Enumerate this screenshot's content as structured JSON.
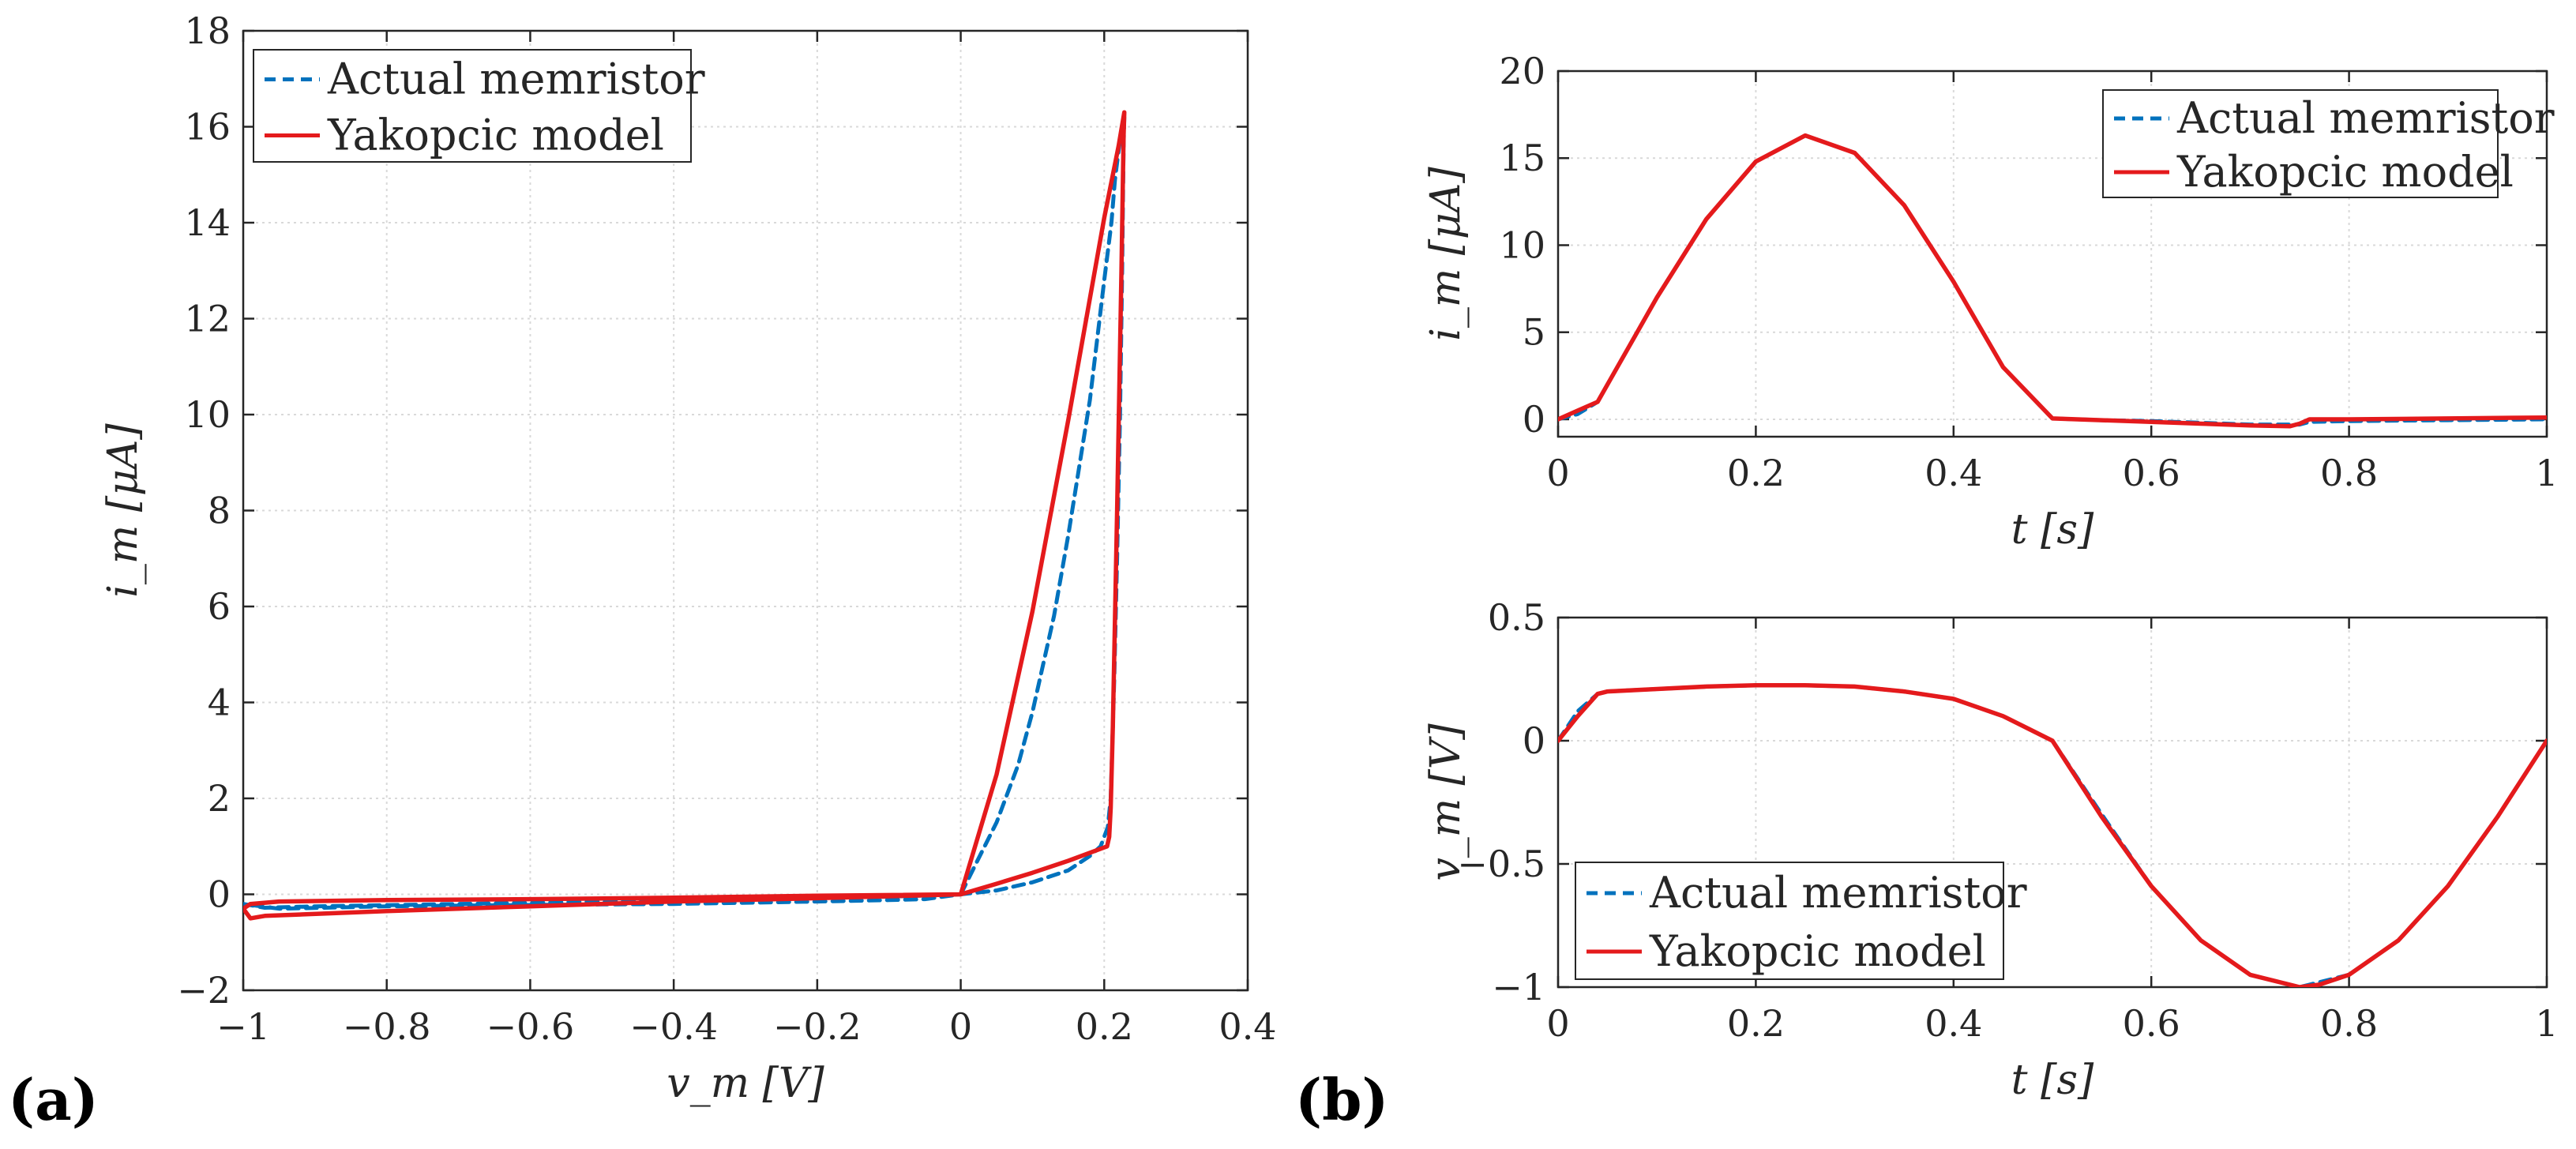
{
  "colors": {
    "actual": "#0072BD",
    "model": "#E41A1C",
    "axis": "#262626",
    "grid": "#d9d9d9"
  },
  "legend_labels": {
    "actual": "Actual memristor",
    "model": "Yakopcic model"
  },
  "chart_data": [
    {
      "panel_label": "(a)",
      "type": "line",
      "xlabel": "v_m [V]",
      "ylabel": "i_m [μA]",
      "xlim": [
        -1,
        0.4
      ],
      "ylim": [
        -2,
        18
      ],
      "xticks": [
        -1,
        -0.8,
        -0.6,
        -0.4,
        -0.2,
        0,
        0.2,
        0.4
      ],
      "yticks": [
        -2,
        0,
        2,
        4,
        6,
        8,
        10,
        12,
        14,
        16,
        18
      ],
      "xtick_labels": [
        "−1",
        "−0.8",
        "−0.6",
        "−0.4",
        "−0.2",
        "0",
        "0.2",
        "0.4"
      ],
      "ytick_labels": [
        "−2",
        "0",
        "2",
        "4",
        "6",
        "8",
        "10",
        "12",
        "14",
        "16",
        "18"
      ],
      "grid": true,
      "legend": "top-left",
      "series": [
        {
          "name": "Actual memristor",
          "style": "dashed",
          "x": [
            0,
            0.02,
            0.05,
            0.08,
            0.1,
            0.13,
            0.15,
            0.18,
            0.2,
            0.21,
            0.215,
            0.22,
            0.225,
            0.228,
            0.227,
            0.225,
            0.222,
            0.218,
            0.214,
            0.211,
            0.209,
            0.205,
            0.195,
            0.18,
            0.15,
            0.1,
            0.05,
            0,
            -0.05,
            -0.1,
            -0.2,
            -0.4,
            -0.6,
            -0.8,
            -0.95,
            -1,
            -0.97,
            -0.9,
            -0.7,
            -0.5,
            -0.3,
            -0.1,
            0
          ],
          "y": [
            0,
            0.6,
            1.5,
            2.7,
            3.8,
            5.8,
            7.5,
            10.3,
            12.8,
            14,
            14.9,
            15.5,
            16.0,
            16.2,
            15.6,
            13,
            10,
            7,
            4.5,
            3,
            2,
            1.4,
            1.0,
            0.8,
            0.5,
            0.25,
            0.08,
            0,
            -0.1,
            -0.12,
            -0.15,
            -0.2,
            -0.22,
            -0.25,
            -0.3,
            -0.2,
            -0.28,
            -0.25,
            -0.2,
            -0.15,
            -0.1,
            -0.05,
            0
          ]
        },
        {
          "name": "Yakopcic model",
          "style": "solid",
          "x": [
            0,
            0.05,
            0.1,
            0.15,
            0.2,
            0.22,
            0.228,
            0.227,
            0.224,
            0.218,
            0.212,
            0.209,
            0.207,
            0.204,
            0.15,
            0.1,
            0.05,
            0,
            -0.2,
            -0.4,
            -0.6,
            -0.8,
            -0.97,
            -0.99,
            -1,
            -0.99,
            -0.95,
            -0.8,
            -0.6,
            -0.4,
            -0.2,
            0
          ],
          "y": [
            0,
            2.5,
            5.9,
            9.9,
            14.1,
            15.6,
            16.3,
            15.8,
            13,
            8,
            3.5,
            1.8,
            1.2,
            1.0,
            0.7,
            0.45,
            0.22,
            0,
            -0.08,
            -0.15,
            -0.25,
            -0.35,
            -0.45,
            -0.5,
            -0.3,
            -0.2,
            -0.15,
            -0.12,
            -0.1,
            -0.07,
            -0.03,
            0
          ]
        }
      ]
    },
    {
      "panel_label": "(b)",
      "type": "line",
      "xlabel": "t [s]",
      "ylabel": "i_m [μA]",
      "xlim": [
        0,
        1
      ],
      "ylim": [
        -1,
        20
      ],
      "xticks": [
        0,
        0.2,
        0.4,
        0.6,
        0.8,
        1
      ],
      "yticks": [
        0,
        5,
        10,
        15,
        20
      ],
      "xtick_labels": [
        "0",
        "0.2",
        "0.4",
        "0.6",
        "0.8",
        "1"
      ],
      "ytick_labels": [
        "0",
        "5",
        "10",
        "15",
        "20"
      ],
      "grid": true,
      "legend": "top-right",
      "series": [
        {
          "name": "Actual memristor",
          "style": "dashed",
          "x": [
            0,
            0.02,
            0.04,
            0.06,
            0.08,
            0.1,
            0.15,
            0.2,
            0.25,
            0.3,
            0.35,
            0.4,
            0.45,
            0.5,
            0.55,
            0.6,
            0.65,
            0.7,
            0.74,
            0.75,
            0.76,
            0.8,
            0.9,
            1
          ],
          "y": [
            0,
            0.3,
            1.0,
            3.0,
            5.0,
            7.0,
            11.5,
            14.8,
            16.3,
            15.3,
            12.3,
            7.9,
            3.0,
            0.05,
            -0.05,
            -0.1,
            -0.2,
            -0.3,
            -0.3,
            -0.3,
            -0.15,
            -0.1,
            -0.05,
            0
          ]
        },
        {
          "name": "Yakopcic model",
          "style": "solid",
          "x": [
            0,
            0.02,
            0.04,
            0.06,
            0.08,
            0.1,
            0.15,
            0.2,
            0.25,
            0.3,
            0.35,
            0.4,
            0.45,
            0.5,
            0.55,
            0.6,
            0.65,
            0.7,
            0.74,
            0.75,
            0.76,
            0.8,
            0.9,
            1
          ],
          "y": [
            0,
            0.5,
            1.0,
            3.0,
            5.0,
            7.0,
            11.5,
            14.8,
            16.3,
            15.3,
            12.3,
            7.9,
            3.0,
            0.05,
            -0.05,
            -0.15,
            -0.25,
            -0.35,
            -0.4,
            -0.25,
            0,
            0,
            0.05,
            0.1
          ]
        }
      ]
    },
    {
      "panel_label": "",
      "type": "line",
      "xlabel": "t [s]",
      "ylabel": "v_m [V]",
      "xlim": [
        0,
        1
      ],
      "ylim": [
        -1,
        0.5
      ],
      "xticks": [
        0,
        0.2,
        0.4,
        0.6,
        0.8,
        1
      ],
      "yticks": [
        -1,
        -0.5,
        0,
        0.5
      ],
      "xtick_labels": [
        "0",
        "0.2",
        "0.4",
        "0.6",
        "0.8",
        "1"
      ],
      "ytick_labels": [
        "−1",
        "−0.5",
        "0",
        "0.5"
      ],
      "grid": true,
      "legend": "bottom-left",
      "series": [
        {
          "name": "Actual memristor",
          "style": "dashed",
          "x": [
            0,
            0.02,
            0.04,
            0.05,
            0.1,
            0.15,
            0.2,
            0.25,
            0.3,
            0.35,
            0.4,
            0.45,
            0.48,
            0.5,
            0.55,
            0.6,
            0.65,
            0.7,
            0.75,
            0.77,
            0.8,
            0.85,
            0.9,
            0.95,
            1
          ],
          "y": [
            0,
            0.12,
            0.19,
            0.2,
            0.21,
            0.22,
            0.225,
            0.225,
            0.22,
            0.2,
            0.17,
            0.1,
            0.04,
            0,
            -0.3,
            -0.59,
            -0.81,
            -0.95,
            -1.0,
            -0.98,
            -0.95,
            -0.81,
            -0.59,
            -0.31,
            0
          ]
        },
        {
          "name": "Yakopcic model",
          "style": "solid",
          "x": [
            0,
            0.02,
            0.04,
            0.05,
            0.1,
            0.15,
            0.2,
            0.25,
            0.3,
            0.35,
            0.4,
            0.45,
            0.48,
            0.5,
            0.55,
            0.6,
            0.65,
            0.7,
            0.75,
            0.77,
            0.8,
            0.85,
            0.9,
            0.95,
            1
          ],
          "y": [
            0,
            0.1,
            0.19,
            0.2,
            0.21,
            0.22,
            0.225,
            0.225,
            0.22,
            0.2,
            0.17,
            0.1,
            0.04,
            0,
            -0.31,
            -0.59,
            -0.81,
            -0.95,
            -1.0,
            -0.99,
            -0.95,
            -0.81,
            -0.59,
            -0.31,
            0
          ]
        }
      ]
    }
  ]
}
